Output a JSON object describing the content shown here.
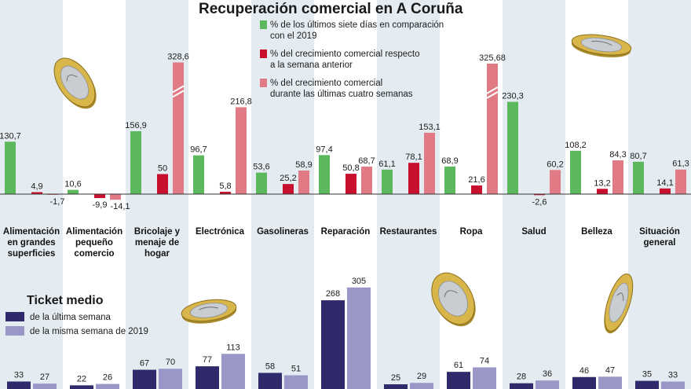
{
  "chart_data": [
    {
      "type": "bar",
      "title": "Recuperación comercial en A Coruña",
      "categories": [
        [
          "Alimentación",
          "en grandes",
          "superficies"
        ],
        [
          "Alimentación",
          "pequeño",
          "comercio"
        ],
        [
          "Bricolaje y",
          "menaje de",
          "hogar"
        ],
        [
          "Electrónica"
        ],
        [
          "Gasolineras"
        ],
        [
          "Reparación"
        ],
        [
          "Restaurantes"
        ],
        [
          "Ropa"
        ],
        [
          "Salud"
        ],
        [
          "Belleza"
        ],
        [
          "Situación",
          "general"
        ]
      ],
      "series": [
        {
          "name": [
            "% de los últimos siete días en comparación",
            "con el 2019"
          ],
          "color": "#5cb85c",
          "values": [
            130.7,
            10.6,
            156.9,
            96.7,
            53.6,
            97.4,
            61.1,
            68.9,
            230.3,
            108.2,
            80.7
          ],
          "labels": [
            "130,7",
            "10,6",
            "156,9",
            "96,7",
            "53,6",
            "97,4",
            "61,1",
            "68,9",
            "230,3",
            "108,2",
            "80,7"
          ]
        },
        {
          "name": [
            "% del crecimiento comercial respecto",
            "a la semana anterior"
          ],
          "color": "#c8102e",
          "values": [
            4.9,
            -9.9,
            50,
            5.8,
            25.2,
            50.8,
            78.1,
            21.6,
            -2.6,
            13.2,
            14.1
          ],
          "labels": [
            "4,9",
            "-9,9",
            "50",
            "5,8",
            "25,2",
            "50,8",
            "78,1",
            "21,6",
            "-2,6",
            "13,2",
            "14,1"
          ]
        },
        {
          "name": [
            "% del crecimiento comercial",
            "durante las últimas cuatro semanas"
          ],
          "color": "#e07b85",
          "values": [
            -1.7,
            -14.1,
            328.6,
            216.8,
            58.9,
            68.7,
            153.1,
            325.68,
            60.2,
            84.3,
            61.3
          ],
          "labels": [
            "-1,7",
            "-14,1",
            "328,6",
            "216,8",
            "58,9",
            "68,7",
            "153,1",
            "325,68",
            "60,2",
            "84,3",
            "61,3"
          ],
          "truncated": [
            false,
            false,
            true,
            false,
            false,
            false,
            false,
            true,
            false,
            false,
            false
          ]
        }
      ]
    },
    {
      "type": "bar",
      "title": "Ticket medio",
      "series": [
        {
          "name": "de la última semana",
          "color": "#2e2a6b",
          "values": [
            33,
            22,
            67,
            77,
            58,
            268,
            25,
            61,
            28,
            46,
            35
          ],
          "labels": [
            "33",
            "22",
            "67",
            "77",
            "58",
            "268",
            "25",
            "61",
            "28",
            "46",
            "35"
          ]
        },
        {
          "name": "de la misma semana de 2019",
          "color": "#9a97c8",
          "values": [
            27,
            26,
            70,
            113,
            51,
            305,
            29,
            74,
            36,
            47,
            33
          ],
          "labels": [
            "27",
            "26",
            "70",
            "113",
            "51",
            "305",
            "29",
            "74",
            "36",
            "47",
            "33"
          ]
        }
      ]
    }
  ],
  "colors": {
    "panel_a": "#e4ecf1",
    "panel_b": "#ffffff",
    "axis": "#333333",
    "coin_gold": "#d9b64a",
    "coin_silver": "#c9ccd0"
  },
  "icons": [
    "euro-coin-icon"
  ]
}
